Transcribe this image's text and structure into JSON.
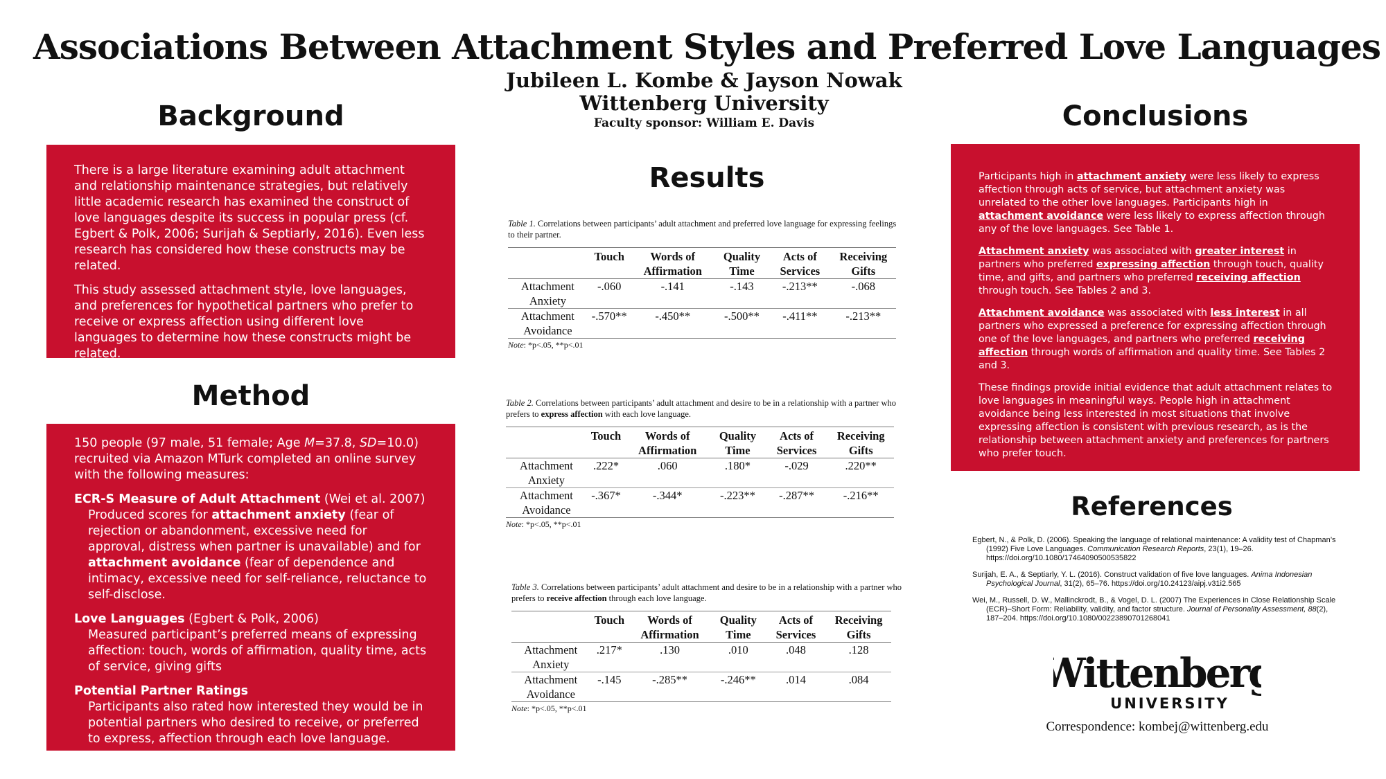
{
  "header": {
    "title": "Associations Between Attachment Styles and Preferred Love Languages",
    "authors": "Jubileen L. Kombe & Jayson Nowak",
    "institution": "Wittenberg University",
    "sponsor": "Faculty sponsor: William E. Davis"
  },
  "background": {
    "heading": "Background",
    "p1": "There is a large literature examining adult attachment and relationship maintenance strategies, but relatively little academic research has examined the construct of love languages despite its success in popular press (cf. Egbert & Polk, 2006; Surijah & Septiarly, 2016). Even less research has considered how these constructs may be related.",
    "p2": "This study assessed attachment style, love languages, and preferences for hypothetical partners who prefer to receive or express affection using different love languages to determine how these constructs might be related."
  },
  "method": {
    "heading": "Method",
    "intro_a": "150 people (97 male, 51 female; Age ",
    "intro_m": "M",
    "intro_b": "=37.8, ",
    "intro_sd": "SD",
    "intro_c": "=10.0) recruited via Amazon MTurk completed an online survey with the following measures:",
    "m1_title": "ECR-S Measure of Adult Attachment",
    "m1_cite": " (Wei et al. 2007)",
    "m1_a": "Produced scores for ",
    "m1_b": "attachment anxiety",
    "m1_c": " (fear of rejection or abandonment, excessive need for approval, distress when partner is unavailable) and for ",
    "m1_d": "attachment avoidance",
    "m1_e": " (fear of dependence and intimacy, excessive need for self-reliance, reluctance to self-disclose.",
    "m2_title": "Love Languages",
    "m2_cite": " (Egbert & Polk, 2006)",
    "m2_body": "Measured participant’s preferred means of expressing affection: touch, words of affirmation, quality time, acts of service, giving gifts",
    "m3_title": "Potential Partner Ratings",
    "m3_body": "Participants also rated how interested they would be in potential partners who desired to receive, or preferred to express, affection through each love language."
  },
  "results": {
    "heading": "Results",
    "columns": [
      "",
      "Touch",
      "Words of Affirmation",
      "Quality Time",
      "Acts of Services",
      "Receiving Gifts"
    ],
    "row_labels": [
      "Attachment Anxiety",
      "Attachment Avoidance"
    ],
    "note_label": "Note",
    "note_text": ": *p<.05, **p<.01",
    "table1": {
      "label": "Table 1.",
      "caption": " Correlations between participants’ adult attachment and preferred love language for expressing feelings to their partner.",
      "anxiety": [
        "-.060",
        "-.141",
        "-.143",
        "-.213**",
        "-.068"
      ],
      "avoidance": [
        "-.570**",
        "-.450**",
        "-.500**",
        "-.411**",
        "-.213**"
      ]
    },
    "table2": {
      "label": "Table 2.",
      "caption_a": " Correlations between participants’ adult attachment and desire to be in a relationship with a partner who prefers to ",
      "caption_bold": "express affection",
      "caption_b": " with each love language.",
      "anxiety": [
        ".222*",
        ".060",
        ".180*",
        "-.029",
        ".220**"
      ],
      "avoidance": [
        "-.367*",
        "-.344*",
        "-.223**",
        "-.287**",
        "-.216**"
      ]
    },
    "table3": {
      "label": "Table 3.",
      "caption_a": " Correlations between participants’ adult attachment and desire to be in a relationship with a partner who prefers to ",
      "caption_bold": "receive affection",
      "caption_b": " through each love language.",
      "anxiety": [
        ".217*",
        ".130",
        ".010",
        ".048",
        ".128"
      ],
      "avoidance": [
        "-.145",
        "-.285**",
        "-.246**",
        ".014",
        ".084"
      ]
    }
  },
  "conclusions": {
    "heading": "Conclusions",
    "p1_a": "Participants high in ",
    "p1_u1": "attachment anxiety",
    "p1_b": " were less likely to express affection through acts of service, but attachment anxiety was unrelated to the other love languages. Participants high in ",
    "p1_u2": "attachment avoidance",
    "p1_c": " were less likely to express affection through any of the love languages. See Table 1.",
    "p2_u1": "Attachment anxiety",
    "p2_a": " was associated with ",
    "p2_u2": "greater interest",
    "p2_b": " in partners who preferred ",
    "p2_u3": "expressing affection",
    "p2_c": " through touch, quality time, and gifts, and partners who preferred ",
    "p2_u4": "receiving affection",
    "p2_d": " through touch. See Tables 2 and 3.",
    "p3_u1": "Attachment avoidance",
    "p3_a": " was associated with ",
    "p3_u2": "less interest",
    "p3_b": " in all partners who expressed a preference for expressing affection through one of the love languages, and partners who preferred ",
    "p3_u3": "receiving affection",
    "p3_c": " through words of affirmation and quality time. See Tables 2 and 3.",
    "p4": "These findings provide initial evidence that adult attachment relates to love languages in meaningful ways. People high in attachment avoidance being less interested in most situations that involve expressing affection is consistent with previous research, as is the relationship between attachment anxiety and preferences for partners who prefer touch."
  },
  "references": {
    "heading": "References",
    "r1_a": "Egbert, N., & Polk, D. (2006). Speaking the language of relational maintenance: A validity test of Chapman’s (1992) Five Love Languages. ",
    "r1_i": "Communication Research Reports",
    "r1_b": ", 23(1), 19–26. https://doi.org/10.1080/17464090500535822",
    "r2_a": "Surijah, E. A., & Septiarly, Y. L. (2016). Construct validation of five love languages. ",
    "r2_i": "Anima Indonesian Psychological Journal",
    "r2_b": ", 31(2), 65–76. https://doi.org/10.24123/aipj.v31i2.565",
    "r3_a": "Wei, M., Russell, D. W., Mallinckrodt, B., & Vogel, D. L. (2007) The Experiences in Close Relationship Scale (ECR)–Short Form: Reliability, validity, and factor structure. ",
    "r3_i": "Journal of Personality Assessment, 88",
    "r3_b": "(2), 187–204. https://doi.org/10.1080/00223890701268041"
  },
  "logo": {
    "wordmark": "Wittenberg",
    "sub": "UNIVERSITY"
  },
  "correspondence": "Correspondence: kombej@wittenberg.edu",
  "colors": {
    "panel": "#c8102e",
    "text": "#111111"
  }
}
